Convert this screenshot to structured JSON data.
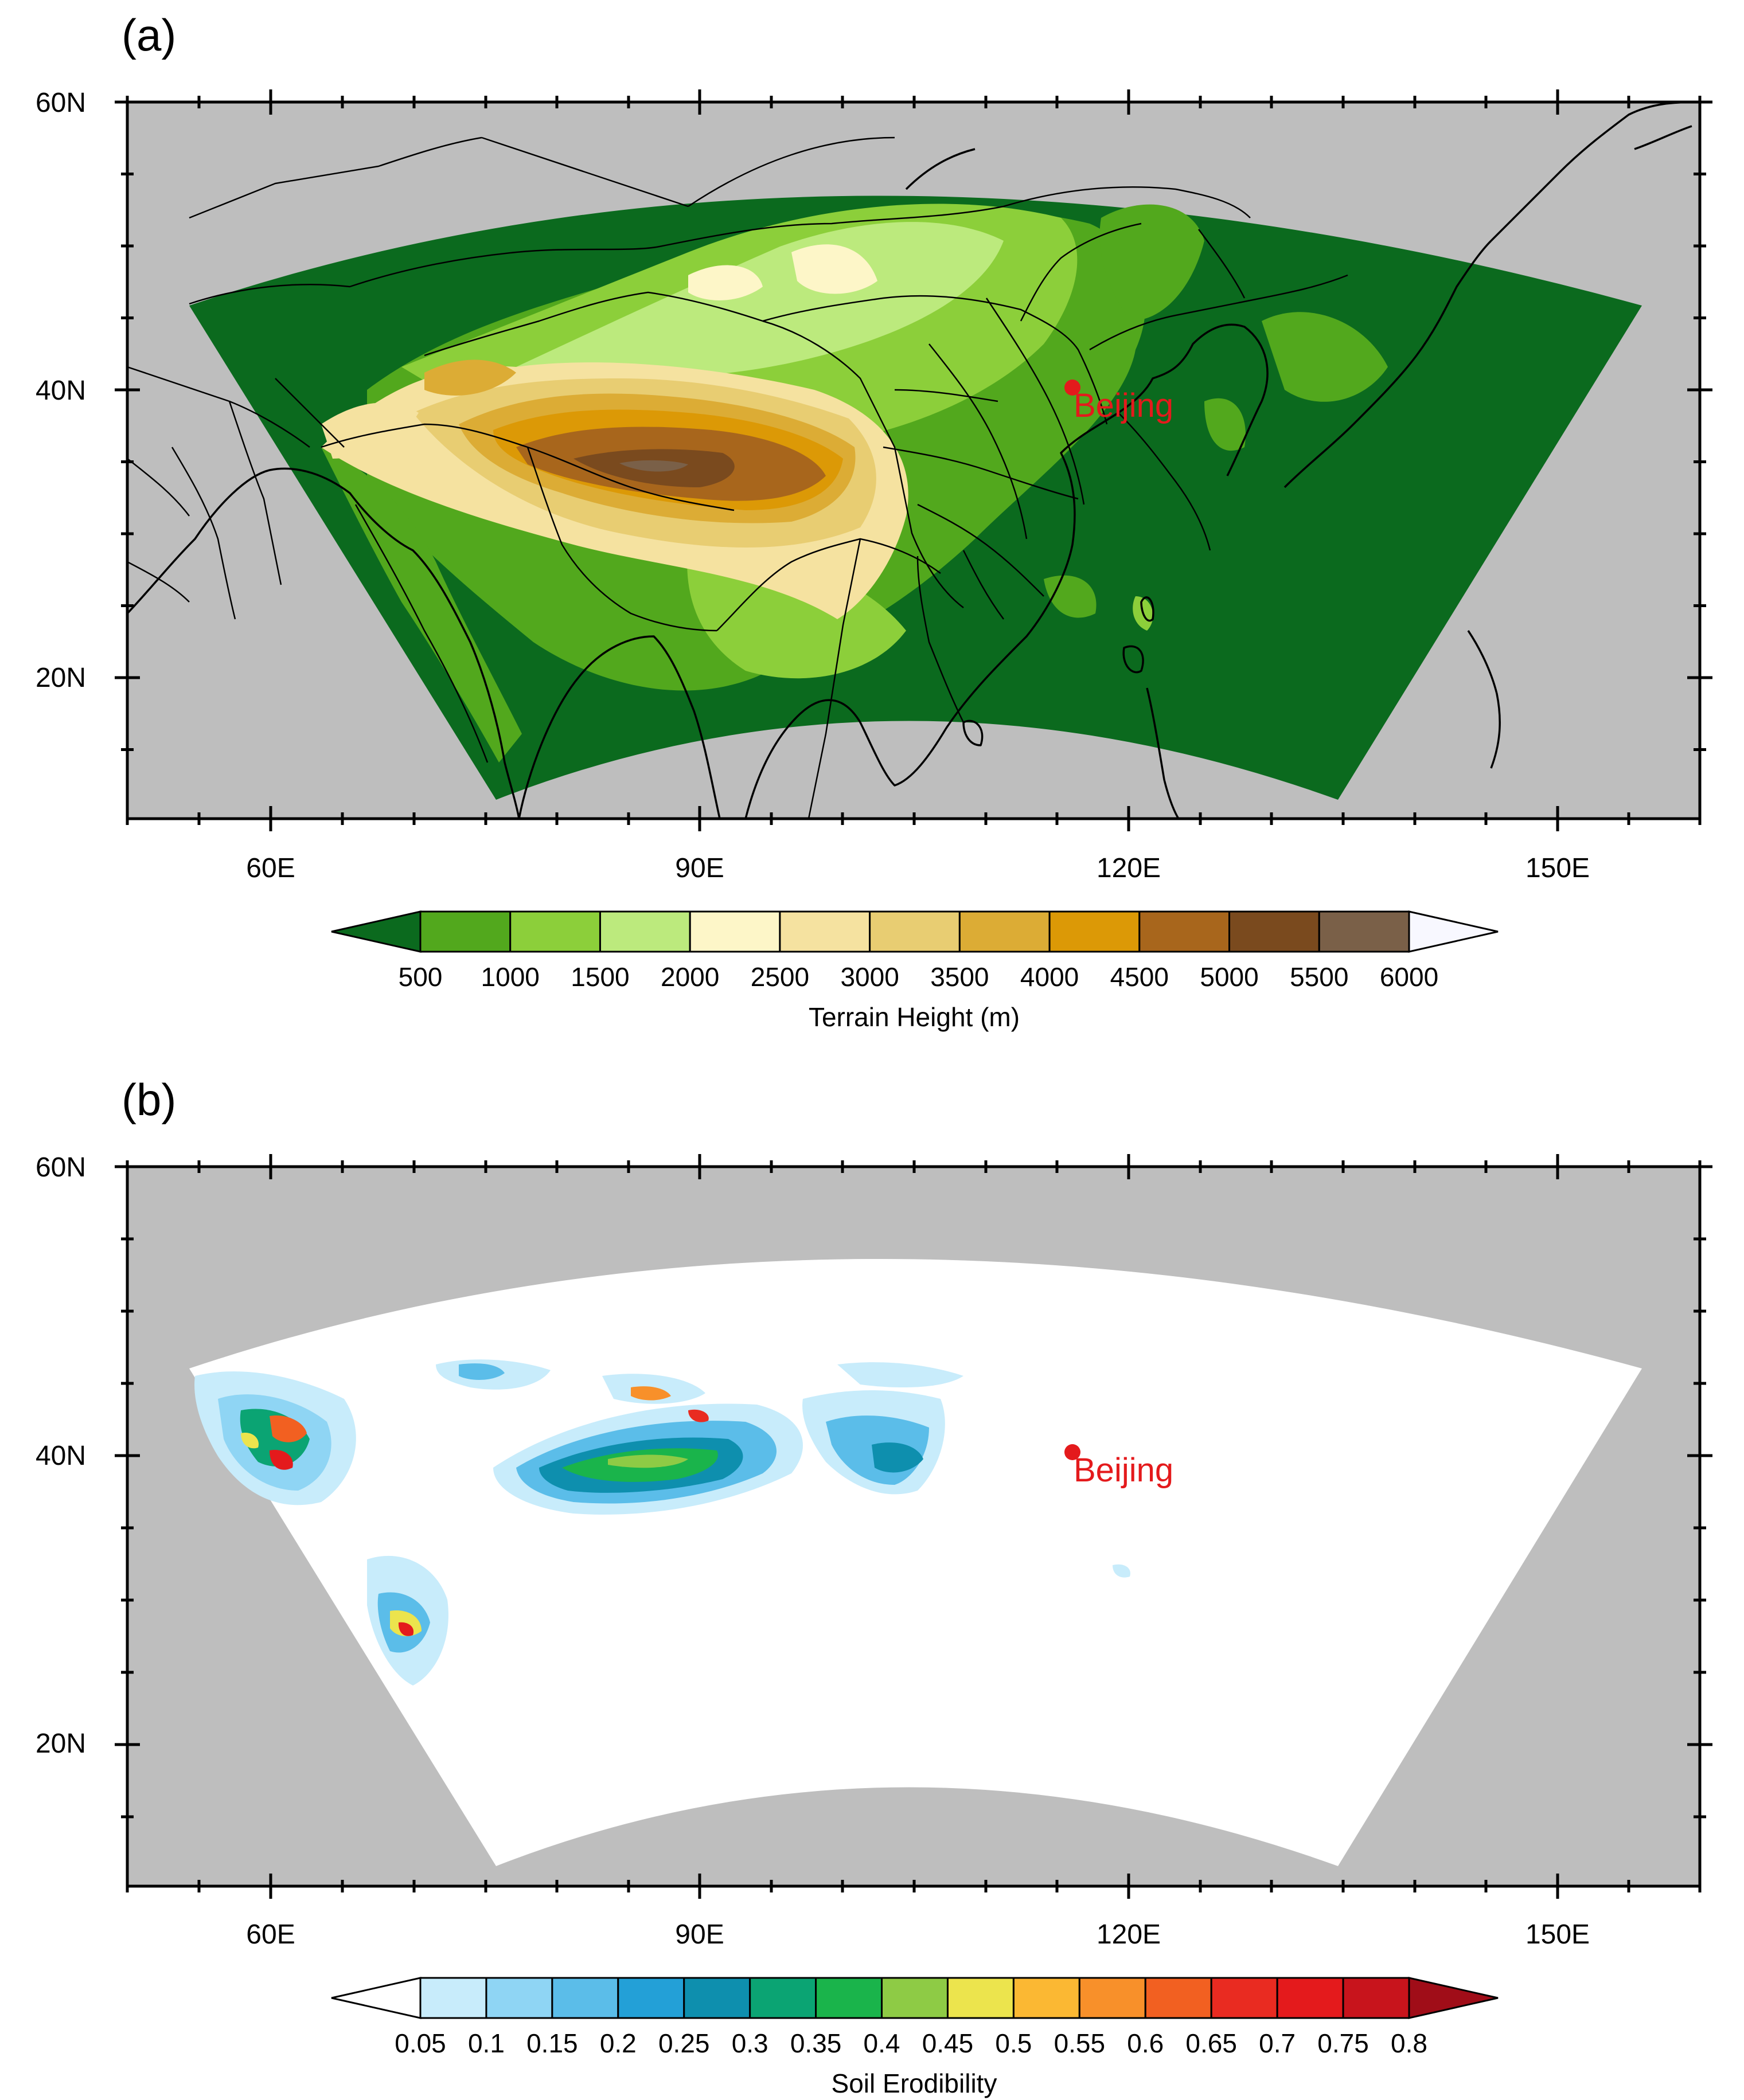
{
  "panels": [
    {
      "id": "a",
      "label": "(a)",
      "colorbar_title": "Terrain Height (m)",
      "colorbar_labels": [
        "500",
        "1000",
        "1500",
        "2000",
        "2500",
        "3000",
        "3500",
        "4000",
        "4500",
        "5000",
        "5500",
        "6000"
      ],
      "colors": [
        "#0b6a1e",
        "#52a81d",
        "#8ccf3a",
        "#bcea7d",
        "#fdf6c8",
        "#f5e2a0",
        "#e8cd72",
        "#dcac35",
        "#dc9906",
        "#a8661c",
        "#7a4a1e",
        "#7a6048",
        "#f8f8ff"
      ]
    },
    {
      "id": "b",
      "label": "(b)",
      "colorbar_title": "Soil Erodibility",
      "colorbar_labels": [
        "0.05",
        "0.1",
        "0.15",
        "0.2",
        "0.25",
        "0.3",
        "0.35",
        "0.4",
        "0.45",
        "0.5",
        "0.55",
        "0.6",
        "0.65",
        "0.7",
        "0.75",
        "0.8"
      ],
      "colors": [
        "#ffffff",
        "#c8ecfb",
        "#8fd5f4",
        "#5bbde9",
        "#23a0d7",
        "#0e8fae",
        "#0ba473",
        "#1ab44b",
        "#8ecb45",
        "#ece44d",
        "#fbb833",
        "#f8902a",
        "#f26021",
        "#e92b21",
        "#e41a1c",
        "#c8141c",
        "#a00d18"
      ]
    }
  ],
  "axes": {
    "lat_labels": [
      "60N",
      "40N",
      "20N"
    ],
    "lon_labels": [
      "60E",
      "90E",
      "120E",
      "150E"
    ]
  },
  "city": {
    "name": "Beijing",
    "lon": 116.4,
    "lat": 39.9
  },
  "colors": {
    "land_masked": "#bebebe",
    "city_marker": "#e41a1c"
  }
}
